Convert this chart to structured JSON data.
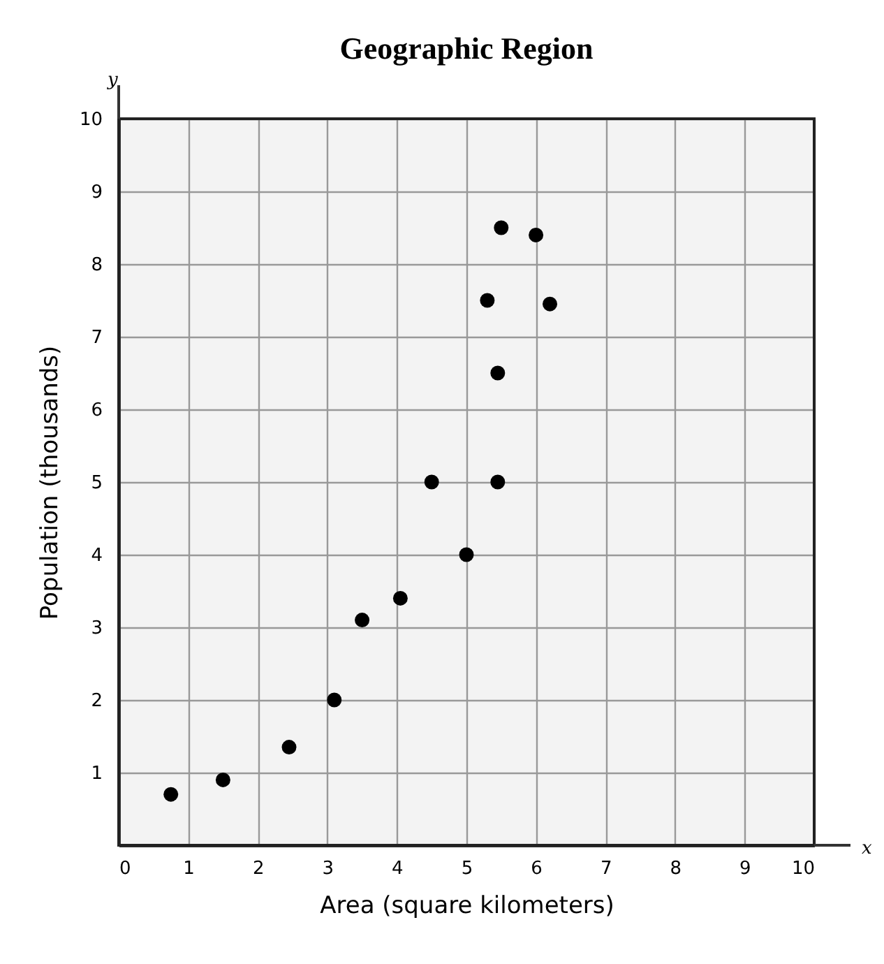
{
  "chart_data": {
    "type": "scatter",
    "title": "Geographic Region",
    "xlabel": "Area (square kilometers)",
    "ylabel": "Population (thousands)",
    "annotations": [
      "y",
      "x"
    ],
    "x": [
      0.75,
      1.5,
      2.45,
      3.1,
      3.5,
      4.05,
      4.5,
      5,
      5.45,
      5.45,
      5.3,
      6.2,
      5.5,
      6
    ],
    "values": [
      0.7,
      0.9,
      1.35,
      2,
      3.1,
      3.4,
      5,
      4,
      5,
      6.5,
      7.5,
      7.45,
      8.5,
      8.4
    ],
    "color": "#000000",
    "marker": "circle",
    "xlim": [
      0,
      10
    ],
    "ylim": [
      0,
      10
    ],
    "xticks": [
      0,
      1,
      2,
      3,
      4,
      5,
      6,
      7,
      8,
      9,
      10
    ],
    "yticks": [
      1,
      2,
      3,
      4,
      5,
      6,
      7,
      8,
      9,
      10
    ],
    "grid": true
  }
}
